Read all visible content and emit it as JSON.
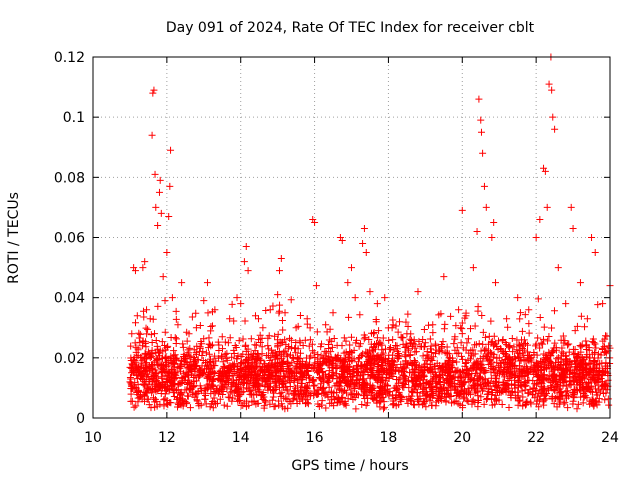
{
  "chart_data": {
    "type": "scatter",
    "title": "Day 091 of 2024, Rate Of TEC Index for receiver cblt",
    "xlabel": "GPS time / hours",
    "ylabel": "ROTI / TECUs",
    "xlim": [
      10,
      24
    ],
    "ylim": [
      0,
      0.12
    ],
    "x_ticks": [
      10,
      12,
      14,
      16,
      18,
      20,
      22,
      24
    ],
    "x_tick_labels": [
      "10",
      "12",
      "14",
      "16",
      "18",
      "20",
      "22",
      "24"
    ],
    "y_ticks": [
      0,
      0.02,
      0.04,
      0.06,
      0.08,
      0.1,
      0.12
    ],
    "y_tick_labels": [
      "0",
      "0.02",
      "0.04",
      "0.06",
      "0.08",
      "0.1",
      "0.12"
    ],
    "grid": true,
    "marker": "+",
    "series": [
      {
        "name": "ROTI",
        "color": "#ff0000",
        "points": [
          [
            11.0,
            0.012
          ],
          [
            11.05,
            0.028
          ],
          [
            11.1,
            0.05
          ],
          [
            11.15,
            0.049
          ],
          [
            11.2,
            0.034
          ],
          [
            11.3,
            0.018
          ],
          [
            11.35,
            0.05
          ],
          [
            11.4,
            0.052
          ],
          [
            11.45,
            0.036
          ],
          [
            11.5,
            0.022
          ],
          [
            11.55,
            0.033
          ],
          [
            11.6,
            0.094
          ],
          [
            11.62,
            0.108
          ],
          [
            11.65,
            0.109
          ],
          [
            11.68,
            0.081
          ],
          [
            11.7,
            0.07
          ],
          [
            11.75,
            0.064
          ],
          [
            11.8,
            0.075
          ],
          [
            11.82,
            0.079
          ],
          [
            11.85,
            0.068
          ],
          [
            11.9,
            0.047
          ],
          [
            11.95,
            0.039
          ],
          [
            12.0,
            0.055
          ],
          [
            12.05,
            0.067
          ],
          [
            12.08,
            0.077
          ],
          [
            12.1,
            0.089
          ],
          [
            12.15,
            0.04
          ],
          [
            12.3,
            0.031
          ],
          [
            12.4,
            0.045
          ],
          [
            12.6,
            0.028
          ],
          [
            12.8,
            0.03
          ],
          [
            13.0,
            0.039
          ],
          [
            13.1,
            0.045
          ],
          [
            13.3,
            0.036
          ],
          [
            13.5,
            0.027
          ],
          [
            13.7,
            0.033
          ],
          [
            13.9,
            0.04
          ],
          [
            14.0,
            0.038
          ],
          [
            14.1,
            0.052
          ],
          [
            14.15,
            0.057
          ],
          [
            14.2,
            0.049
          ],
          [
            14.4,
            0.034
          ],
          [
            14.6,
            0.03
          ],
          [
            14.8,
            0.036
          ],
          [
            15.0,
            0.041
          ],
          [
            15.05,
            0.049
          ],
          [
            15.1,
            0.053
          ],
          [
            15.2,
            0.035
          ],
          [
            15.5,
            0.03
          ],
          [
            15.8,
            0.033
          ],
          [
            15.95,
            0.066
          ],
          [
            16.0,
            0.065
          ],
          [
            16.05,
            0.044
          ],
          [
            16.3,
            0.031
          ],
          [
            16.5,
            0.035
          ],
          [
            16.7,
            0.06
          ],
          [
            16.75,
            0.059
          ],
          [
            16.9,
            0.045
          ],
          [
            17.0,
            0.05
          ],
          [
            17.1,
            0.04
          ],
          [
            17.3,
            0.058
          ],
          [
            17.35,
            0.063
          ],
          [
            17.4,
            0.055
          ],
          [
            17.5,
            0.042
          ],
          [
            17.7,
            0.038
          ],
          [
            17.9,
            0.04
          ],
          [
            18.1,
            0.03
          ],
          [
            18.3,
            0.032
          ],
          [
            18.5,
            0.028
          ],
          [
            18.8,
            0.042
          ],
          [
            19.0,
            0.025
          ],
          [
            19.2,
            0.031
          ],
          [
            19.5,
            0.047
          ],
          [
            19.8,
            0.027
          ],
          [
            19.9,
            0.036
          ],
          [
            20.0,
            0.069
          ],
          [
            20.1,
            0.034
          ],
          [
            20.3,
            0.05
          ],
          [
            20.4,
            0.062
          ],
          [
            20.45,
            0.106
          ],
          [
            20.5,
            0.099
          ],
          [
            20.52,
            0.095
          ],
          [
            20.55,
            0.088
          ],
          [
            20.6,
            0.077
          ],
          [
            20.65,
            0.07
          ],
          [
            20.8,
            0.06
          ],
          [
            20.85,
            0.065
          ],
          [
            20.9,
            0.045
          ],
          [
            21.2,
            0.033
          ],
          [
            21.5,
            0.04
          ],
          [
            21.8,
            0.036
          ],
          [
            22.0,
            0.06
          ],
          [
            22.1,
            0.066
          ],
          [
            22.2,
            0.083
          ],
          [
            22.25,
            0.082
          ],
          [
            22.3,
            0.07
          ],
          [
            22.35,
            0.111
          ],
          [
            22.4,
            0.12
          ],
          [
            22.42,
            0.109
          ],
          [
            22.45,
            0.1
          ],
          [
            22.5,
            0.096
          ],
          [
            22.6,
            0.05
          ],
          [
            22.8,
            0.038
          ],
          [
            22.95,
            0.07
          ],
          [
            23.0,
            0.063
          ],
          [
            23.2,
            0.045
          ],
          [
            23.5,
            0.06
          ],
          [
            23.6,
            0.055
          ],
          [
            23.8,
            0.038
          ],
          [
            24.0,
            0.044
          ]
        ],
        "baseline_band": [
          0.003,
          0.028
        ]
      }
    ]
  }
}
